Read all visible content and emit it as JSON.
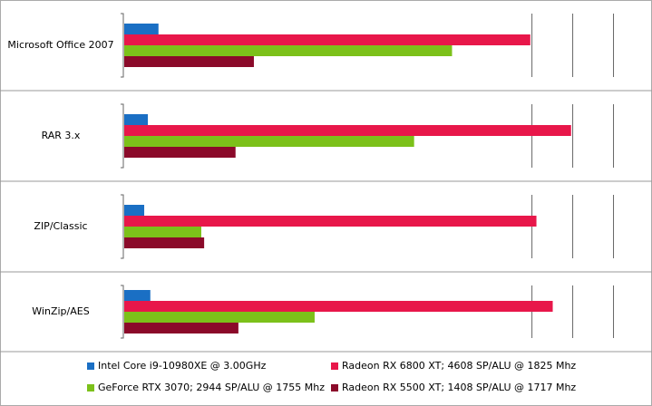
{
  "chart_data": {
    "type": "bar",
    "orientation": "horizontal",
    "categories": [
      "Microsoft Office 2007",
      "RAR 3.x",
      "ZIP/Classic",
      "WinZip/AES"
    ],
    "series": [
      {
        "name": "Intel Core i9-10980XE @ 3.00GHz",
        "color": "#1a6fc4",
        "values": [
          8.4,
          5.8,
          4.9,
          6.4
        ]
      },
      {
        "name": "Radeon RX 6800 XT; 4608 SP/ALU @ 1825 Mhz",
        "color": "#e8174a",
        "values": [
          99.6,
          109.6,
          101.1,
          105.1
        ]
      },
      {
        "name": "GeForce RTX 3070; 2944 SP/ALU @ 1755 Mhz",
        "color": "#7cc11a",
        "values": [
          80.4,
          71.1,
          18.9,
          46.7
        ]
      },
      {
        "name": "Radeon RX 5500 XT; 1408 SP/ALU @ 1717 Mhz",
        "color": "#8b0a2a",
        "values": [
          31.8,
          27.3,
          19.6,
          28.0
        ]
      }
    ],
    "xlim": [
      0,
      127
    ],
    "xticks": [
      100,
      110,
      120
    ],
    "grid": true
  }
}
